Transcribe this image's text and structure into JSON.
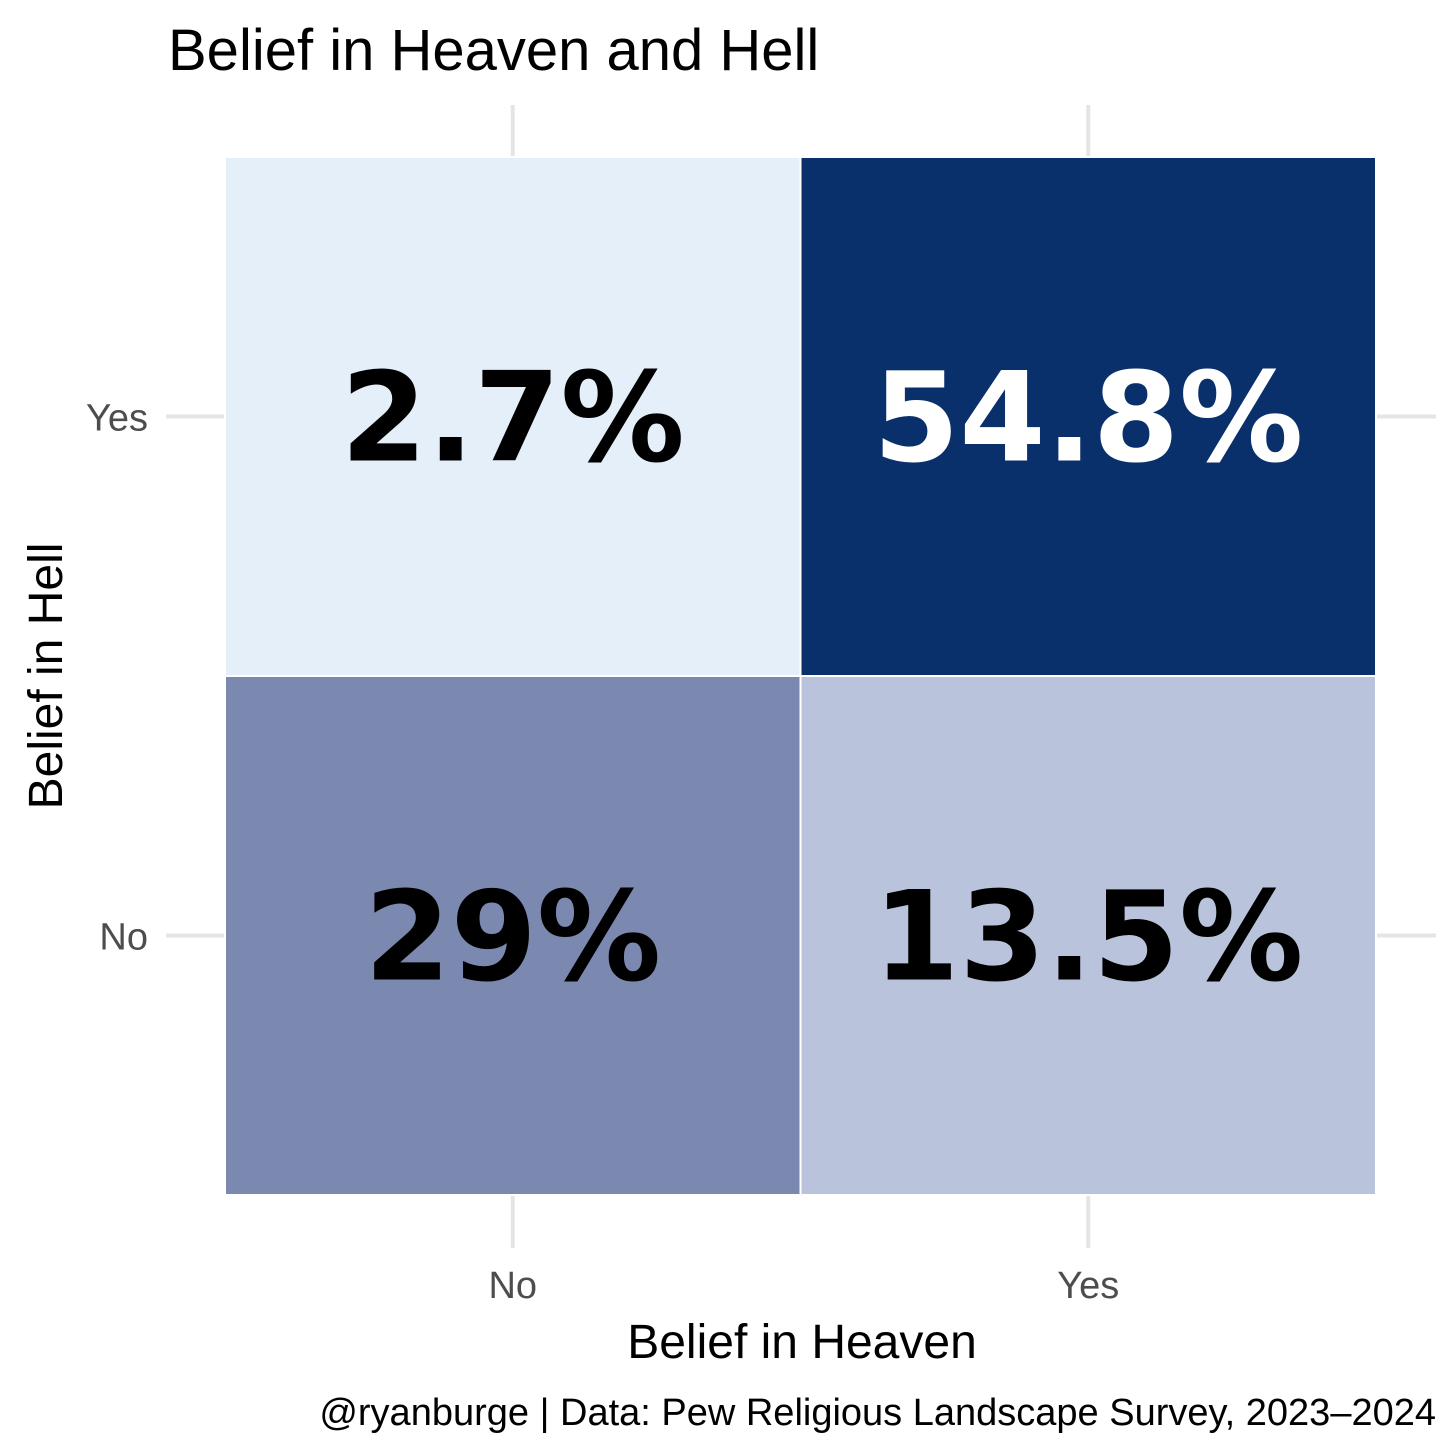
{
  "chart_data": {
    "type": "heatmap",
    "title": "Belief in Heaven and Hell",
    "xlabel": "Belief in Heaven",
    "ylabel": "Belief in Hell",
    "x_categories": [
      "No",
      "Yes"
    ],
    "y_categories": [
      "No",
      "Yes"
    ],
    "cells": [
      {
        "x": "No",
        "y": "Yes",
        "value": 2.7,
        "label": "2.7%",
        "fill": "#e5eff9",
        "text_color": "#000000"
      },
      {
        "x": "Yes",
        "y": "Yes",
        "value": 54.8,
        "label": "54.8%",
        "fill": "#0a306b",
        "text_color": "#ffffff"
      },
      {
        "x": "No",
        "y": "No",
        "value": 29,
        "label": "29%",
        "fill": "#7b88b0",
        "text_color": "#000000"
      },
      {
        "x": "Yes",
        "y": "No",
        "value": 13.5,
        "label": "13.5%",
        "fill": "#b9c4dc",
        "text_color": "#000000"
      }
    ],
    "legend": "none",
    "caption": "@ryanburge | Data: Pew Religious Landscape Survey, 2023–2024"
  }
}
